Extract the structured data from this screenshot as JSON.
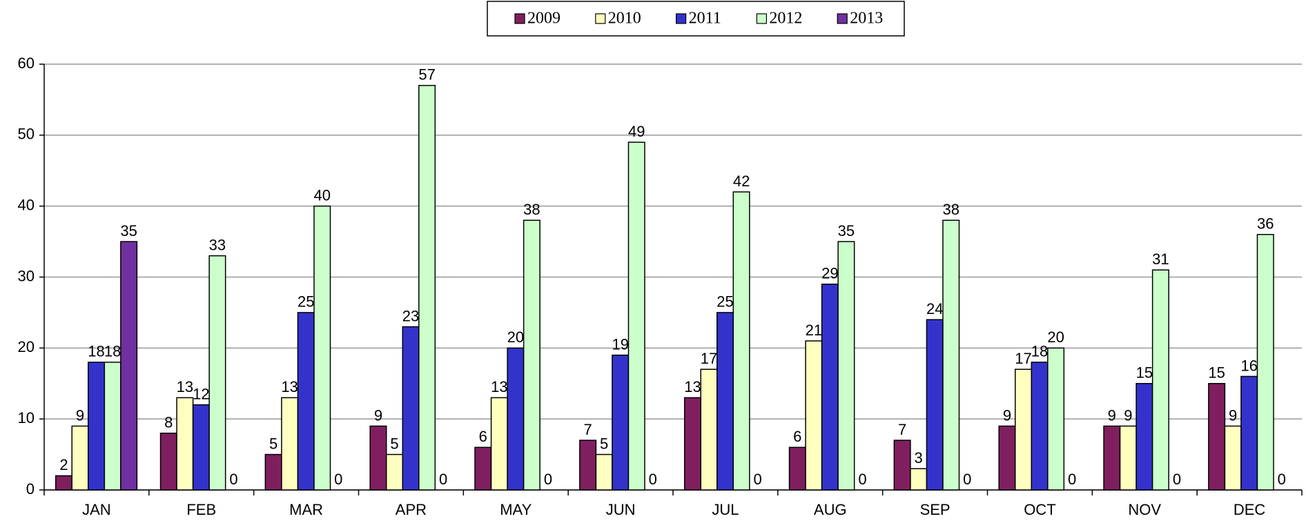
{
  "chart_data": {
    "type": "bar",
    "categories": [
      "JAN",
      "FEB",
      "MAR",
      "APR",
      "MAY",
      "JUN",
      "JUL",
      "AUG",
      "SEP",
      "OCT",
      "NOV",
      "DEC"
    ],
    "series": [
      {
        "name": "2009",
        "color": "#7f1f5f",
        "values": [
          2,
          8,
          5,
          9,
          6,
          7,
          13,
          6,
          7,
          9,
          9,
          15
        ]
      },
      {
        "name": "2010",
        "color": "#ffffc0",
        "values": [
          9,
          13,
          13,
          5,
          13,
          5,
          17,
          21,
          3,
          17,
          9,
          9
        ]
      },
      {
        "name": "2011",
        "color": "#3333cc",
        "values": [
          18,
          12,
          25,
          23,
          20,
          19,
          25,
          29,
          24,
          18,
          15,
          16
        ]
      },
      {
        "name": "2012",
        "color": "#ccffcc",
        "values": [
          18,
          33,
          40,
          57,
          38,
          49,
          42,
          35,
          38,
          20,
          31,
          36
        ]
      },
      {
        "name": "2013",
        "color": "#7030a0",
        "values": [
          35,
          0,
          0,
          0,
          0,
          0,
          0,
          0,
          0,
          0,
          0,
          0
        ]
      }
    ],
    "ylim": [
      0,
      60
    ],
    "yticks": [
      0,
      10,
      20,
      30,
      40,
      50,
      60
    ],
    "grid": true,
    "legend": "top"
  }
}
